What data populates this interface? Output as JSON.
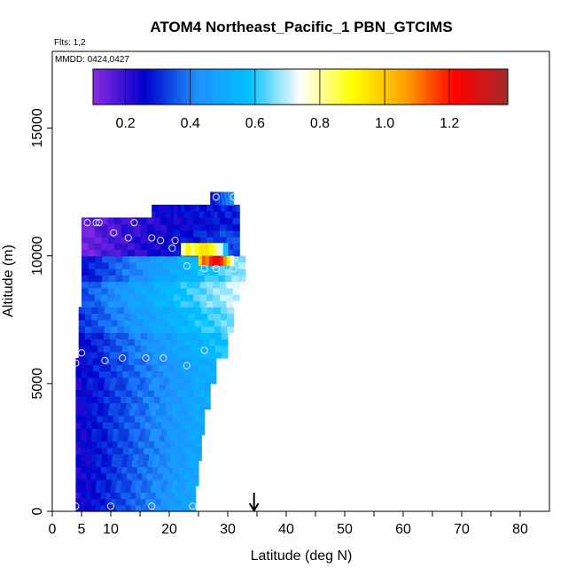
{
  "chart_data": {
    "type": "heatmap",
    "title": "ATOM4 Northeast_Pacific_1 PBN_GTCIMS",
    "flights_label": "Flts: 1,2",
    "dates_label": "MMDD: 0424,0427",
    "xlabel": "Latitude (deg N)",
    "ylabel": "Altitude (m)",
    "xlim": [
      0,
      85
    ],
    "ylim": [
      0,
      18000
    ],
    "x_ticks": [
      0,
      5,
      10,
      20,
      30,
      40,
      50,
      60,
      70,
      80
    ],
    "y_ticks": [
      0,
      5000,
      10000,
      15000
    ],
    "colorbar": {
      "range": [
        0.1,
        1.38
      ],
      "ticks": [
        0.2,
        0.4,
        0.6,
        0.8,
        1.0,
        1.2
      ],
      "tick_labels": [
        "0.2",
        "0.4",
        "0.6",
        "0.8",
        "1.0",
        "1.2"
      ],
      "colors": [
        "#8a2be2",
        "#0000cd",
        "#1e90ff",
        "#00bfff",
        "#ffffff",
        "#ffff00",
        "#ffa500",
        "#ff0000",
        "#a52a2a"
      ]
    },
    "arrow_marker_lat": 34.5,
    "layers": [
      {
        "alt": [
          0,
          1000
        ],
        "lat": [
          4,
          24.5
        ],
        "low": 0.22,
        "high": 0.5
      },
      {
        "alt": [
          1000,
          2000
        ],
        "lat": [
          4,
          25
        ],
        "low": 0.22,
        "high": 0.5
      },
      {
        "alt": [
          2000,
          3000
        ],
        "lat": [
          4,
          25.5
        ],
        "low": 0.22,
        "high": 0.5
      },
      {
        "alt": [
          3000,
          4000
        ],
        "lat": [
          4,
          26
        ],
        "low": 0.23,
        "high": 0.51
      },
      {
        "alt": [
          4000,
          5000
        ],
        "lat": [
          4,
          27
        ],
        "low": 0.23,
        "high": 0.52
      },
      {
        "alt": [
          5000,
          6000
        ],
        "lat": [
          4,
          28
        ],
        "low": 0.24,
        "high": 0.53
      },
      {
        "alt": [
          6000,
          7000
        ],
        "lat": [
          4.5,
          30
        ],
        "low": 0.25,
        "high": 0.6
      },
      {
        "alt": [
          7000,
          8000
        ],
        "lat": [
          4.5,
          31
        ],
        "low": 0.3,
        "high": 0.66
      },
      {
        "alt": [
          8000,
          9000
        ],
        "lat": [
          5,
          32
        ],
        "low": 0.33,
        "high": 0.72
      },
      {
        "alt": [
          9000,
          10000
        ],
        "lat": [
          5,
          33
        ],
        "low": 0.26,
        "high": 0.68
      },
      {
        "alt": [
          10000,
          11000
        ],
        "lat": [
          5,
          32
        ],
        "low": 0.12,
        "high": 0.35
      },
      {
        "alt": [
          11000,
          11500
        ],
        "lat": [
          5,
          32
        ],
        "low": 0.14,
        "high": 0.3
      },
      {
        "alt": [
          11500,
          12000
        ],
        "lat": [
          17,
          32
        ],
        "low": 0.24,
        "high": 0.3
      },
      {
        "alt": [
          12000,
          12500
        ],
        "lat": [
          27,
          31
        ],
        "low": 0.25,
        "high": 0.45
      }
    ],
    "hotspots": [
      {
        "alt": [
          9600,
          10000
        ],
        "lat": [
          25,
          31
        ],
        "value": 1.25
      },
      {
        "alt": [
          10000,
          10500
        ],
        "lat": [
          22,
          30
        ],
        "value": 0.95
      }
    ],
    "points": [
      {
        "lat": 4,
        "alt": 200
      },
      {
        "lat": 10,
        "alt": 200
      },
      {
        "lat": 17,
        "alt": 200
      },
      {
        "lat": 24,
        "alt": 200
      },
      {
        "lat": 4,
        "alt": 5800
      },
      {
        "lat": 5,
        "alt": 6200
      },
      {
        "lat": 9,
        "alt": 5900
      },
      {
        "lat": 12,
        "alt": 6000
      },
      {
        "lat": 16,
        "alt": 6000
      },
      {
        "lat": 19,
        "alt": 6000
      },
      {
        "lat": 23,
        "alt": 5700
      },
      {
        "lat": 26,
        "alt": 6300
      },
      {
        "lat": 21,
        "alt": 10600
      },
      {
        "lat": 20.5,
        "alt": 10300
      },
      {
        "lat": 23,
        "alt": 9600
      },
      {
        "lat": 26,
        "alt": 9500
      },
      {
        "lat": 28,
        "alt": 9500
      },
      {
        "lat": 31,
        "alt": 9500
      },
      {
        "lat": 33,
        "alt": 9000
      },
      {
        "lat": 6,
        "alt": 11300
      },
      {
        "lat": 7.5,
        "alt": 11300
      },
      {
        "lat": 8,
        "alt": 11300
      },
      {
        "lat": 10.5,
        "alt": 10900
      },
      {
        "lat": 13,
        "alt": 10700
      },
      {
        "lat": 14,
        "alt": 11300
      },
      {
        "lat": 17,
        "alt": 10700
      },
      {
        "lat": 18.5,
        "alt": 10600
      },
      {
        "lat": 28,
        "alt": 12300
      },
      {
        "lat": 31,
        "alt": 12300
      }
    ]
  }
}
